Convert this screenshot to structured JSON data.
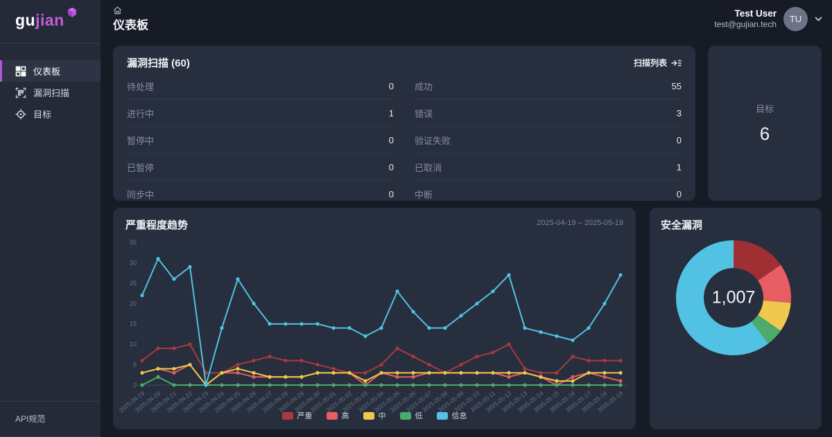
{
  "brand": {
    "name_part1": "gu",
    "name_part2": "jian",
    "accent_color": "#b554dc"
  },
  "sidebar": {
    "items": [
      {
        "label": "仪表板",
        "icon": "dashboard-icon",
        "active": true
      },
      {
        "label": "漏洞扫描",
        "icon": "scan-icon",
        "active": false
      },
      {
        "label": "目标",
        "icon": "target-icon",
        "active": false
      }
    ],
    "footer_link": "API规范"
  },
  "header": {
    "title": "仪表板",
    "user": {
      "name": "Test User",
      "email": "test@gujian.tech",
      "avatar_initials": "TU"
    }
  },
  "scan_summary": {
    "title": "漏洞扫描 (60)",
    "link_label": "扫描列表",
    "left_rows": [
      {
        "label": "待处理",
        "value": "0"
      },
      {
        "label": "进行中",
        "value": "1"
      },
      {
        "label": "暂停中",
        "value": "0"
      },
      {
        "label": "已暂停",
        "value": "0"
      },
      {
        "label": "同步中",
        "value": "0"
      }
    ],
    "right_rows": [
      {
        "label": "成功",
        "value": "55"
      },
      {
        "label": "错误",
        "value": "3"
      },
      {
        "label": "验证失败",
        "value": "0"
      },
      {
        "label": "已取消",
        "value": "1"
      },
      {
        "label": "中断",
        "value": "0"
      }
    ]
  },
  "targets_card": {
    "label": "目标",
    "value": "6"
  },
  "chart_data": [
    {
      "type": "line",
      "title": "严重程度趋势",
      "date_range": "2025-04-19 – 2025-05-19",
      "x": [
        "2025-04-19",
        "2025-04-20",
        "2025-04-21",
        "2025-04-22",
        "2025-04-23",
        "2025-04-24",
        "2025-04-25",
        "2025-04-26",
        "2025-04-27",
        "2025-04-28",
        "2025-04-29",
        "2025-04-30",
        "2025-05-01",
        "2025-05-02",
        "2025-05-03",
        "2025-05-04",
        "2025-05-05",
        "2025-05-06",
        "2025-05-07",
        "2025-05-08",
        "2025-05-09",
        "2025-05-10",
        "2025-05-11",
        "2025-05-12",
        "2025-05-13",
        "2025-05-14",
        "2025-05-15",
        "2025-05-16",
        "2025-05-17",
        "2025-05-18",
        "2025-05-19"
      ],
      "ylim": [
        0,
        35
      ],
      "yticks": [
        0,
        5,
        10,
        15,
        20,
        25,
        30,
        35
      ],
      "grid": "vertical-only",
      "legend_position": "bottom",
      "series": [
        {
          "name": "严重",
          "key": "critical",
          "color": "#a93a3e",
          "values": [
            6,
            9,
            9,
            10,
            3,
            3,
            5,
            6,
            7,
            6,
            6,
            5,
            4,
            3,
            3,
            5,
            9,
            7,
            5,
            3,
            5,
            7,
            8,
            10,
            4,
            3,
            3,
            7,
            6,
            6,
            6
          ]
        },
        {
          "name": "高",
          "key": "high",
          "color": "#e85d62",
          "values": [
            3,
            4,
            3,
            5,
            0,
            3,
            3,
            2,
            2,
            2,
            2,
            3,
            3,
            3,
            0,
            3,
            2,
            2,
            3,
            3,
            3,
            3,
            3,
            2,
            3,
            2,
            0,
            2,
            3,
            2,
            1
          ]
        },
        {
          "name": "中",
          "key": "medium",
          "color": "#f0c84d",
          "values": [
            3,
            4,
            4,
            5,
            0,
            3,
            4,
            3,
            2,
            2,
            2,
            3,
            3,
            3,
            1,
            3,
            3,
            3,
            3,
            3,
            3,
            3,
            3,
            3,
            3,
            2,
            1,
            1,
            3,
            3,
            3
          ]
        },
        {
          "name": "低",
          "key": "low",
          "color": "#4cab6c",
          "values": [
            0,
            2,
            0,
            0,
            0,
            0,
            0,
            0,
            0,
            0,
            0,
            0,
            0,
            0,
            0,
            0,
            0,
            0,
            0,
            0,
            0,
            0,
            0,
            0,
            0,
            0,
            0,
            0,
            0,
            0,
            0
          ]
        },
        {
          "name": "信息",
          "key": "info",
          "color": "#52c2e4",
          "values": [
            22,
            31,
            26,
            29,
            0,
            14,
            26,
            20,
            15,
            15,
            15,
            15,
            14,
            14,
            12,
            14,
            23,
            18,
            14,
            14,
            17,
            20,
            23,
            27,
            14,
            13,
            12,
            11,
            14,
            20,
            27
          ]
        }
      ]
    },
    {
      "type": "pie",
      "title": "安全漏洞",
      "center_label": "1,007",
      "total": 1007,
      "segments": [
        {
          "name": "严重",
          "key": "critical",
          "color": "#a02f33",
          "value": 154
        },
        {
          "name": "高",
          "key": "high",
          "color": "#e85d62",
          "value": 112
        },
        {
          "name": "中",
          "key": "medium",
          "color": "#f0c84d",
          "value": 84
        },
        {
          "name": "低",
          "key": "low",
          "color": "#4cab6c",
          "value": 50
        },
        {
          "name": "信息",
          "key": "info",
          "color": "#52c2e4",
          "value": 607
        }
      ]
    }
  ]
}
